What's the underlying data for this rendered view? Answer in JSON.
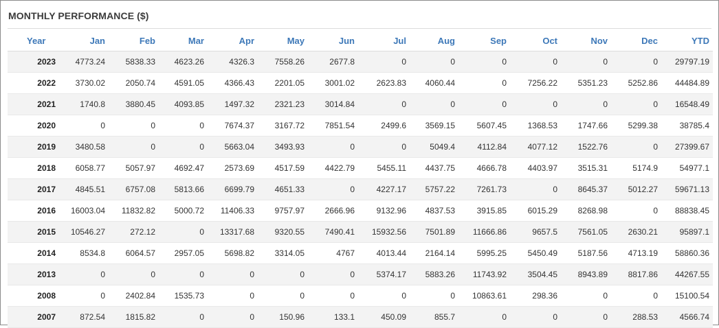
{
  "title": "MONTHLY PERFORMANCE ($)",
  "chart_data": {
    "type": "table",
    "title": "MONTHLY PERFORMANCE ($)",
    "columns": [
      "Year",
      "Jan",
      "Feb",
      "Mar",
      "Apr",
      "May",
      "Jun",
      "Jul",
      "Aug",
      "Sep",
      "Oct",
      "Nov",
      "Dec",
      "YTD"
    ],
    "rows": [
      [
        "2023",
        "4773.24",
        "5838.33",
        "4623.26",
        "4326.3",
        "7558.26",
        "2677.8",
        "0",
        "0",
        "0",
        "0",
        "0",
        "0",
        "29797.19"
      ],
      [
        "2022",
        "3730.02",
        "2050.74",
        "4591.05",
        "4366.43",
        "2201.05",
        "3001.02",
        "2623.83",
        "4060.44",
        "0",
        "7256.22",
        "5351.23",
        "5252.86",
        "44484.89"
      ],
      [
        "2021",
        "1740.8",
        "3880.45",
        "4093.85",
        "1497.32",
        "2321.23",
        "3014.84",
        "0",
        "0",
        "0",
        "0",
        "0",
        "0",
        "16548.49"
      ],
      [
        "2020",
        "0",
        "0",
        "0",
        "7674.37",
        "3167.72",
        "7851.54",
        "2499.6",
        "3569.15",
        "5607.45",
        "1368.53",
        "1747.66",
        "5299.38",
        "38785.4"
      ],
      [
        "2019",
        "3480.58",
        "0",
        "0",
        "5663.04",
        "3493.93",
        "0",
        "0",
        "5049.4",
        "4112.84",
        "4077.12",
        "1522.76",
        "0",
        "27399.67"
      ],
      [
        "2018",
        "6058.77",
        "5057.97",
        "4692.47",
        "2573.69",
        "4517.59",
        "4422.79",
        "5455.11",
        "4437.75",
        "4666.78",
        "4403.97",
        "3515.31",
        "5174.9",
        "54977.1"
      ],
      [
        "2017",
        "4845.51",
        "6757.08",
        "5813.66",
        "6699.79",
        "4651.33",
        "0",
        "4227.17",
        "5757.22",
        "7261.73",
        "0",
        "8645.37",
        "5012.27",
        "59671.13"
      ],
      [
        "2016",
        "16003.04",
        "11832.82",
        "5000.72",
        "11406.33",
        "9757.97",
        "2666.96",
        "9132.96",
        "4837.53",
        "3915.85",
        "6015.29",
        "8268.98",
        "0",
        "88838.45"
      ],
      [
        "2015",
        "10546.27",
        "272.12",
        "0",
        "13317.68",
        "9320.55",
        "7490.41",
        "15932.56",
        "7501.89",
        "11666.86",
        "9657.5",
        "7561.05",
        "2630.21",
        "95897.1"
      ],
      [
        "2014",
        "8534.8",
        "6064.57",
        "2957.05",
        "5698.82",
        "3314.05",
        "4767",
        "4013.44",
        "2164.14",
        "5995.25",
        "5450.49",
        "5187.56",
        "4713.19",
        "58860.36"
      ],
      [
        "2013",
        "0",
        "0",
        "0",
        "0",
        "0",
        "0",
        "5374.17",
        "5883.26",
        "11743.92",
        "3504.45",
        "8943.89",
        "8817.86",
        "44267.55"
      ],
      [
        "2008",
        "0",
        "2402.84",
        "1535.73",
        "0",
        "0",
        "0",
        "0",
        "0",
        "10863.61",
        "298.36",
        "0",
        "0",
        "15100.54"
      ],
      [
        "2007",
        "872.54",
        "1815.82",
        "0",
        "0",
        "150.96",
        "133.1",
        "450.09",
        "855.7",
        "0",
        "0",
        "0",
        "288.53",
        "4566.74"
      ]
    ]
  }
}
